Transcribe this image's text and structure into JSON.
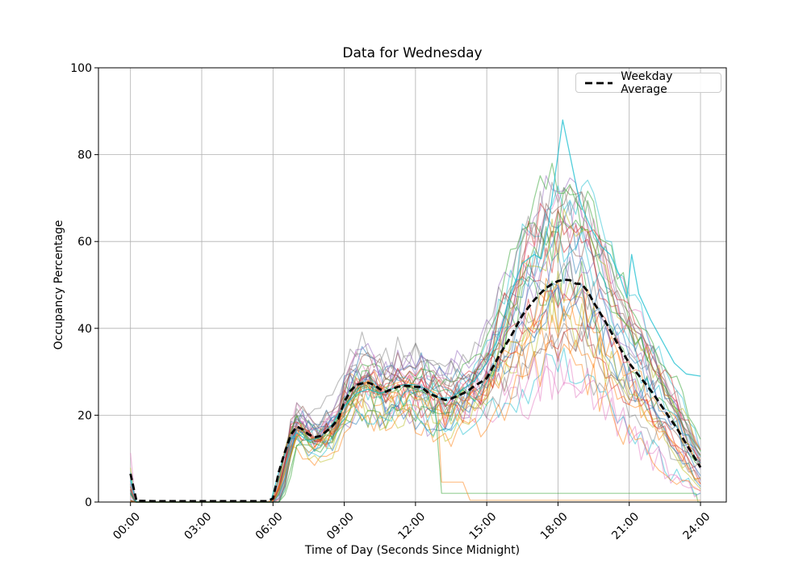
{
  "chart_data": {
    "type": "line",
    "title": "Data for Wednesday",
    "xlabel": "Time of Day (Seconds Since Midnight)",
    "ylabel": "Occupancy Percentage",
    "ylim": [
      0,
      100
    ],
    "x_range_hours": [
      0,
      24
    ],
    "grid": true,
    "y_ticks": [
      0,
      20,
      40,
      60,
      80,
      100
    ],
    "x_ticks": [
      {
        "hour": 0,
        "label": "00:00"
      },
      {
        "hour": 3,
        "label": "03:00"
      },
      {
        "hour": 6,
        "label": "06:00"
      },
      {
        "hour": 9,
        "label": "09:00"
      },
      {
        "hour": 12,
        "label": "12:00"
      },
      {
        "hour": 15,
        "label": "15:00"
      },
      {
        "hour": 18,
        "label": "18:00"
      },
      {
        "hour": 21,
        "label": "21:00"
      },
      {
        "hour": 24,
        "label": "24:00"
      }
    ],
    "legend": {
      "label": "Weekday Average",
      "position": "upper right",
      "style": "dashed",
      "color": "#000000"
    },
    "average_series": {
      "name": "Weekday Average",
      "color": "#000000",
      "points": [
        [
          0,
          6.5
        ],
        [
          0.25,
          0.3
        ],
        [
          1,
          0.2
        ],
        [
          2,
          0.2
        ],
        [
          3,
          0.2
        ],
        [
          4,
          0.2
        ],
        [
          5,
          0.2
        ],
        [
          5.75,
          0.2
        ],
        [
          6,
          0.8
        ],
        [
          6.25,
          7
        ],
        [
          6.5,
          11.5
        ],
        [
          6.75,
          15.5
        ],
        [
          7,
          17.4
        ],
        [
          7.25,
          16.7
        ],
        [
          7.5,
          15.6
        ],
        [
          7.75,
          14.9
        ],
        [
          8,
          15.2
        ],
        [
          8.25,
          16.3
        ],
        [
          8.5,
          17.5
        ],
        [
          8.75,
          19.2
        ],
        [
          9,
          23
        ],
        [
          9.25,
          25.5
        ],
        [
          9.5,
          27
        ],
        [
          9.75,
          27.3
        ],
        [
          10,
          27.5
        ],
        [
          10.25,
          27
        ],
        [
          10.5,
          26
        ],
        [
          10.75,
          25.4
        ],
        [
          11,
          26
        ],
        [
          11.25,
          26.5
        ],
        [
          11.5,
          26.8
        ],
        [
          11.75,
          26.7
        ],
        [
          12,
          26.5
        ],
        [
          12.25,
          26.5
        ],
        [
          12.5,
          25.3
        ],
        [
          12.75,
          24.6
        ],
        [
          13,
          24
        ],
        [
          13.25,
          23.5
        ],
        [
          13.5,
          23.8
        ],
        [
          13.75,
          24.4
        ],
        [
          14,
          25
        ],
        [
          14.25,
          25.8
        ],
        [
          14.5,
          26.8
        ],
        [
          14.75,
          27.6
        ],
        [
          15,
          28.5
        ],
        [
          15.25,
          31
        ],
        [
          15.5,
          33.5
        ],
        [
          15.75,
          35.8
        ],
        [
          16,
          38
        ],
        [
          16.25,
          40.5
        ],
        [
          16.5,
          43
        ],
        [
          16.75,
          44.8
        ],
        [
          17,
          46.5
        ],
        [
          17.25,
          48
        ],
        [
          17.5,
          49.3
        ],
        [
          17.75,
          50.2
        ],
        [
          18,
          50.9
        ],
        [
          18.25,
          51.2
        ],
        [
          18.5,
          51.1
        ],
        [
          18.75,
          50.3
        ],
        [
          19,
          50.2
        ],
        [
          19.25,
          48.5
        ],
        [
          19.5,
          46
        ],
        [
          19.75,
          43.8
        ],
        [
          20,
          41.5
        ],
        [
          20.25,
          39
        ],
        [
          20.5,
          36.5
        ],
        [
          20.75,
          34.2
        ],
        [
          21,
          32
        ],
        [
          21.25,
          30.2
        ],
        [
          21.5,
          28.5
        ],
        [
          21.75,
          26.8
        ],
        [
          22,
          25
        ],
        [
          22.5,
          21
        ],
        [
          23,
          17
        ],
        [
          23.5,
          12.5
        ],
        [
          24,
          8
        ]
      ]
    },
    "outlier_series": {
      "name": "high-peak-cyan-line",
      "color": "#17becf",
      "peak": {
        "hour": 18.2,
        "value": 88
      },
      "points": [
        [
          0,
          5
        ],
        [
          0.25,
          0
        ],
        [
          5.9,
          0
        ],
        [
          6.3,
          8
        ],
        [
          6.7,
          14
        ],
        [
          7,
          16
        ],
        [
          7.5,
          14
        ],
        [
          8,
          15
        ],
        [
          8.5,
          18
        ],
        [
          9,
          22
        ],
        [
          9.5,
          25
        ],
        [
          10,
          26
        ],
        [
          10.5,
          25
        ],
        [
          11,
          26
        ],
        [
          11.5,
          27
        ],
        [
          12,
          27
        ],
        [
          12.5,
          26
        ],
        [
          13,
          24
        ],
        [
          13.5,
          24
        ],
        [
          14,
          26
        ],
        [
          14.5,
          28
        ],
        [
          15,
          32
        ],
        [
          15.5,
          38
        ],
        [
          16,
          48
        ],
        [
          16.5,
          55
        ],
        [
          17,
          57
        ],
        [
          17.3,
          56
        ],
        [
          17.6,
          64
        ],
        [
          18,
          80
        ],
        [
          18.2,
          88
        ],
        [
          18.5,
          80
        ],
        [
          18.8,
          72
        ],
        [
          19,
          68
        ],
        [
          19.4,
          63
        ],
        [
          19.8,
          59
        ],
        [
          20.2,
          57
        ],
        [
          20.6,
          52
        ],
        [
          20.9,
          47
        ],
        [
          21.1,
          57
        ],
        [
          21.4,
          48
        ],
        [
          21.9,
          42
        ],
        [
          22.4,
          37
        ],
        [
          22.9,
          32
        ],
        [
          23.4,
          29.5
        ],
        [
          24,
          29
        ]
      ]
    },
    "special_series": [
      {
        "name": "early-dropout-green-line",
        "color": "#2ca02c",
        "points": [
          [
            0,
            0
          ],
          [
            5.9,
            0
          ],
          [
            6.3,
            6
          ],
          [
            6.6,
            14
          ],
          [
            7,
            20
          ],
          [
            7.5,
            14
          ],
          [
            8,
            13
          ],
          [
            8.5,
            17
          ],
          [
            9,
            22
          ],
          [
            9.5,
            26
          ],
          [
            10,
            27
          ],
          [
            10.5,
            25
          ],
          [
            11,
            26
          ],
          [
            11.5,
            27
          ],
          [
            12,
            26
          ],
          [
            12.5,
            25.5
          ],
          [
            12.8,
            24
          ],
          [
            13.1,
            2
          ],
          [
            23.8,
            2
          ],
          [
            23.9,
            0
          ],
          [
            24,
            0
          ]
        ]
      },
      {
        "name": "early-dropout-orange-line",
        "color": "#ff7f0e",
        "points": [
          [
            0,
            0
          ],
          [
            5.95,
            0
          ],
          [
            6.4,
            5
          ],
          [
            6.8,
            12
          ],
          [
            7.2,
            18
          ],
          [
            7.6,
            15
          ],
          [
            8,
            14
          ],
          [
            8.5,
            16
          ],
          [
            9,
            21
          ],
          [
            9.5,
            25
          ],
          [
            10,
            28
          ],
          [
            10.5,
            26
          ],
          [
            11,
            27
          ],
          [
            11.5,
            28
          ],
          [
            12,
            27
          ],
          [
            12.5,
            26
          ],
          [
            12.9,
            25
          ],
          [
            13.1,
            4.6
          ],
          [
            14,
            4.6
          ],
          [
            14.3,
            0.4
          ],
          [
            24,
            0.4
          ]
        ]
      }
    ],
    "individual_lines": {
      "count": 34,
      "seed": 11,
      "alpha": 0.5,
      "line_width": 1.2,
      "step_hours": 0.25,
      "midnight_spike_max": 13,
      "envelope_plateau": [
        13,
        38
      ],
      "envelope_evening_peak": [
        25,
        71
      ],
      "palette": [
        "#1f77b4",
        "#ff7f0e",
        "#2ca02c",
        "#d62728",
        "#9467bd",
        "#8c564b",
        "#e377c2",
        "#7f7f7f",
        "#bcbd22",
        "#17becf"
      ]
    }
  },
  "colors": {
    "background": "#ffffff",
    "grid": "#b0b0b0",
    "spine": "#000000",
    "average_line": "#000000",
    "tick_label": "#000000"
  }
}
